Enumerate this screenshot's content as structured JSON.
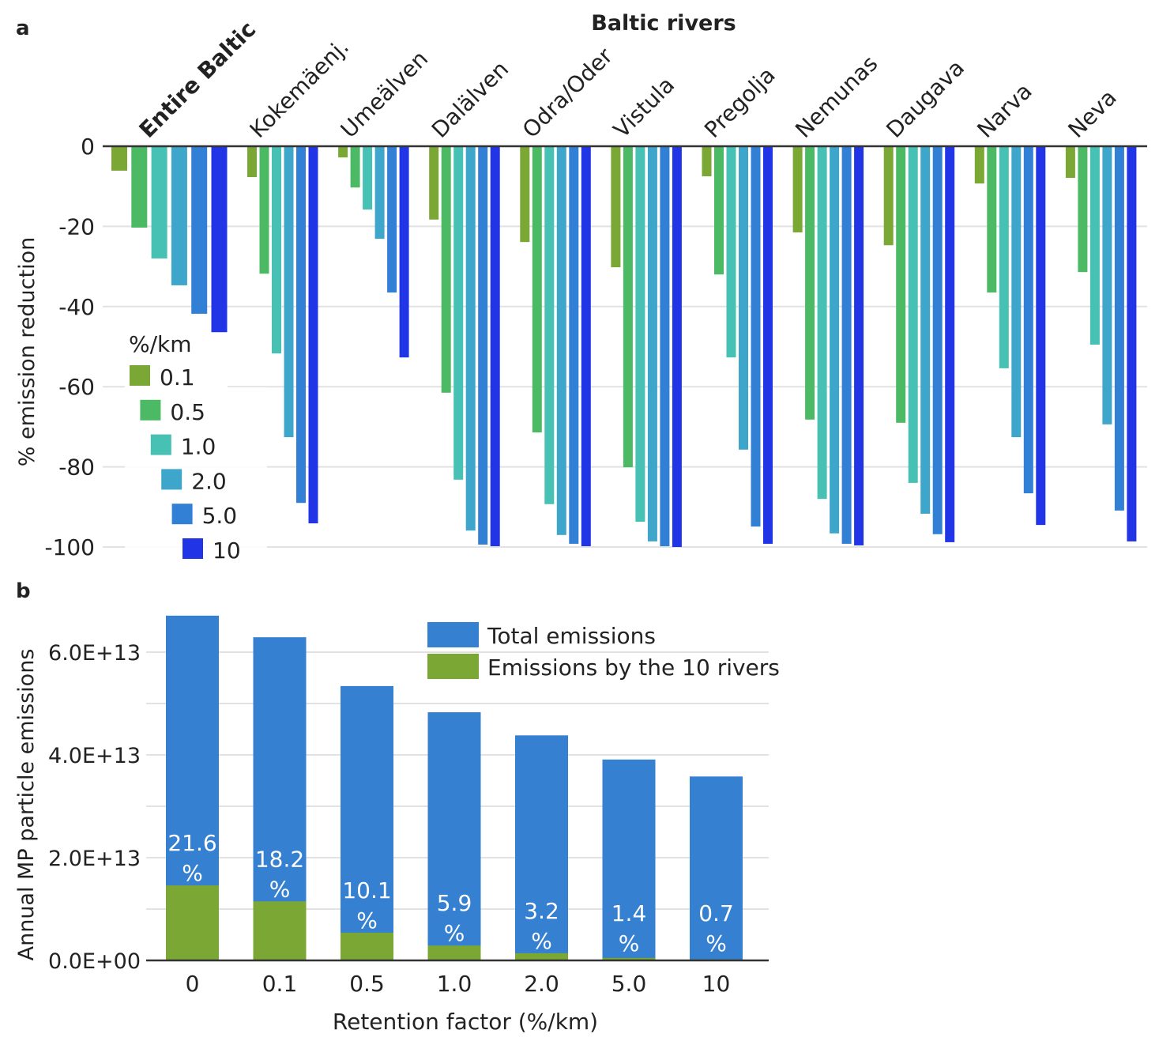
{
  "chart_data": [
    {
      "panel": "a",
      "type": "bar",
      "title": "Baltic rivers",
      "xlabel": "",
      "ylabel": "% emission reduction",
      "ylim": [
        -100,
        0
      ],
      "yticks": [
        0,
        -20,
        -40,
        -60,
        -80,
        -100
      ],
      "ytick_labels": [
        "0",
        "-20",
        "-40",
        "-60",
        "-80",
        "-100"
      ],
      "grid": true,
      "legend_title": "%/km",
      "legend_placement": "bottom-left",
      "categories": [
        "Entire Baltic",
        "Kokemäenj.",
        "Umeälven",
        "Dalälven",
        "Odra/Oder",
        "Vistula",
        "Pregolja",
        "Nemunas",
        "Daugava",
        "Narva",
        "Neva"
      ],
      "series": [
        {
          "name": "0.1",
          "color": "#7ba734",
          "values": [
            -6.1,
            -7.7,
            -2.8,
            -18.3,
            -23.9,
            -30.2,
            -7.5,
            -21.5,
            -24.7,
            -9.3,
            -7.9
          ]
        },
        {
          "name": "0.5",
          "color": "#4cb964",
          "values": [
            -20.3,
            -31.8,
            -10.3,
            -61.5,
            -71.4,
            -80.1,
            -32.0,
            -68.2,
            -69.0,
            -36.5,
            -31.4
          ]
        },
        {
          "name": "1.0",
          "color": "#46c1b4",
          "values": [
            -28.0,
            -51.7,
            -15.8,
            -83.2,
            -89.3,
            -93.7,
            -52.7,
            -88.0,
            -84.0,
            -55.4,
            -49.5
          ]
        },
        {
          "name": "2.0",
          "color": "#3ea6cb",
          "values": [
            -34.7,
            -72.6,
            -23.1,
            -95.9,
            -97.0,
            -98.6,
            -75.7,
            -96.6,
            -91.7,
            -72.6,
            -69.4
          ]
        },
        {
          "name": "5.0",
          "color": "#3180d6",
          "values": [
            -41.8,
            -89.0,
            -36.5,
            -99.4,
            -99.2,
            -99.8,
            -94.9,
            -99.2,
            -96.8,
            -86.6,
            -90.9
          ]
        },
        {
          "name": "10",
          "color": "#2134e6",
          "values": [
            -46.4,
            -94.1,
            -52.7,
            -99.8,
            -99.8,
            -100.0,
            -99.2,
            -99.6,
            -98.8,
            -94.5,
            -98.6
          ]
        }
      ]
    },
    {
      "panel": "b",
      "type": "bar",
      "title": "",
      "xlabel": "Retention factor (%/km)",
      "ylabel": "Annual MP particle emissions",
      "ylim": [
        0,
        67000000000000.0
      ],
      "yticks": [
        0,
        20000000000000.0,
        40000000000000.0,
        60000000000000.0
      ],
      "ytick_labels": [
        "0.0E+00",
        "2.0E+13",
        "4.0E+13",
        "6.0E+13"
      ],
      "grid": true,
      "legend_placement": "top-right",
      "categories": [
        "0",
        "0.1",
        "0.5",
        "1.0",
        "2.0",
        "5.0",
        "10"
      ],
      "series": [
        {
          "name": "Total emissions",
          "color": "#3580d0",
          "values": [
            67100000000000.0,
            62900000000000.0,
            53400000000000.0,
            48300000000000.0,
            43800000000000.0,
            39100000000000.0,
            35800000000000.0
          ]
        },
        {
          "name": "Emissions by the 10 rivers",
          "color": "#7ba734",
          "values": [
            14600000000000.0,
            11500000000000.0,
            5400000000000.0,
            2900000000000.0,
            1400000000000.0,
            500000000000.0,
            200000000000.0
          ]
        }
      ],
      "data_labels": [
        "21.6",
        "18.2",
        "10.1",
        "5.9",
        "3.2",
        "1.4",
        "0.7"
      ],
      "data_label_unit": "%"
    }
  ],
  "panel_labels": [
    "a",
    "b"
  ]
}
